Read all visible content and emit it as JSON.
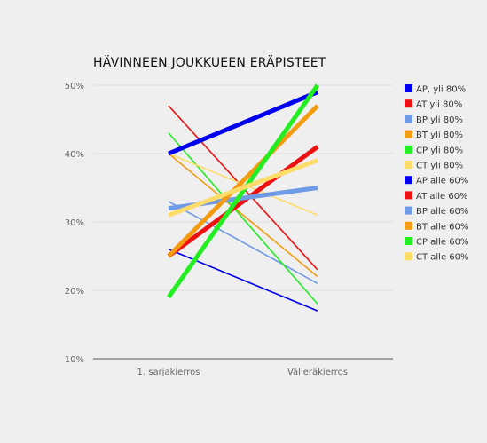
{
  "chart_data": {
    "type": "line",
    "title": "HÄVINNEEN JOUKKUEEN ERÄPISTEET",
    "xlabel": "",
    "ylabel": "",
    "categories": [
      "1. sarjakierros",
      "Välieräkierros"
    ],
    "yticks": [
      "10%",
      "20%",
      "30%",
      "40%",
      "50%"
    ],
    "ylim": [
      10,
      50
    ],
    "grid": true,
    "legend_position": "right",
    "series": [
      {
        "name": "AP, yli 80%",
        "values": [
          40,
          49
        ],
        "color": "#0000ee",
        "weight": "thick"
      },
      {
        "name": "AT yli 80%",
        "values": [
          25,
          41
        ],
        "color": "#ee1111",
        "weight": "thick"
      },
      {
        "name": "BP yli 80%",
        "values": [
          32,
          35
        ],
        "color": "#6f9ae6",
        "weight": "thick"
      },
      {
        "name": "BT yli 80%",
        "values": [
          25,
          47
        ],
        "color": "#f39c12",
        "weight": "thick"
      },
      {
        "name": "CP yli 80%",
        "values": [
          19,
          50
        ],
        "color": "#22ee22",
        "weight": "thick"
      },
      {
        "name": "CT yli 80%",
        "values": [
          31,
          39
        ],
        "color": "#fddc6a",
        "weight": "thick"
      },
      {
        "name": "AP alle 60%",
        "values": [
          26,
          17
        ],
        "color": "#0000ee",
        "weight": "thin"
      },
      {
        "name": "AT alle 60%",
        "values": [
          47,
          23
        ],
        "color": "#ee1111",
        "weight": "thin"
      },
      {
        "name": "BP alle 60%",
        "values": [
          33,
          21
        ],
        "color": "#6f9ae6",
        "weight": "thin"
      },
      {
        "name": "BT alle 60%",
        "values": [
          40,
          22
        ],
        "color": "#f39c12",
        "weight": "thin"
      },
      {
        "name": "CP alle 60%",
        "values": [
          43,
          18
        ],
        "color": "#22ee22",
        "weight": "thin"
      },
      {
        "name": "CT alle 60%",
        "values": [
          40,
          31
        ],
        "color": "#fddc6a",
        "weight": "thin"
      }
    ]
  }
}
